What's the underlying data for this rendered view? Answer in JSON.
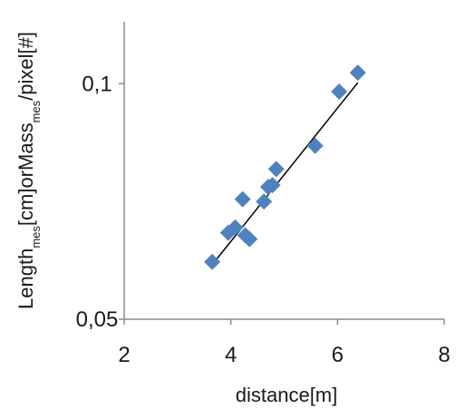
{
  "chart_data": {
    "type": "scatter",
    "xlabel": "distance[m]",
    "ylabel": {
      "parts": [
        {
          "text": "Length",
          "sub": false
        },
        {
          "text": "mes",
          "sub": true
        },
        {
          "text": "[cm]orMass",
          "sub": false
        },
        {
          "text": "mes",
          "sub": true
        },
        {
          "text": "/pixel[#]",
          "sub": false
        }
      ]
    },
    "xlim": [
      2,
      8
    ],
    "ylim": [
      0.05,
      0.12
    ],
    "yscale": "log",
    "x_ticks": [
      2,
      4,
      6,
      8
    ],
    "x_tick_labels": [
      "2",
      "4",
      "6",
      "8"
    ],
    "y_ticks": [
      0.05,
      0.1
    ],
    "y_tick_labels": [
      "0,05",
      "0,1"
    ],
    "grid": false,
    "marker": "diamond",
    "marker_color": "#4F81BD",
    "trendline_color": "#000000",
    "points": [
      {
        "x": 3.65,
        "y": 0.0592
      },
      {
        "x": 3.95,
        "y": 0.0645
      },
      {
        "x": 4.08,
        "y": 0.0655
      },
      {
        "x": 4.22,
        "y": 0.0712
      },
      {
        "x": 4.27,
        "y": 0.064
      },
      {
        "x": 4.35,
        "y": 0.0633
      },
      {
        "x": 4.62,
        "y": 0.0707
      },
      {
        "x": 4.7,
        "y": 0.0738
      },
      {
        "x": 4.78,
        "y": 0.0742
      },
      {
        "x": 4.85,
        "y": 0.0778
      },
      {
        "x": 5.58,
        "y": 0.0833
      },
      {
        "x": 6.03,
        "y": 0.0977
      },
      {
        "x": 6.38,
        "y": 0.1033
      }
    ],
    "trendline": {
      "x": [
        3.65,
        6.38
      ],
      "y": [
        0.0587,
        0.1003
      ]
    }
  }
}
